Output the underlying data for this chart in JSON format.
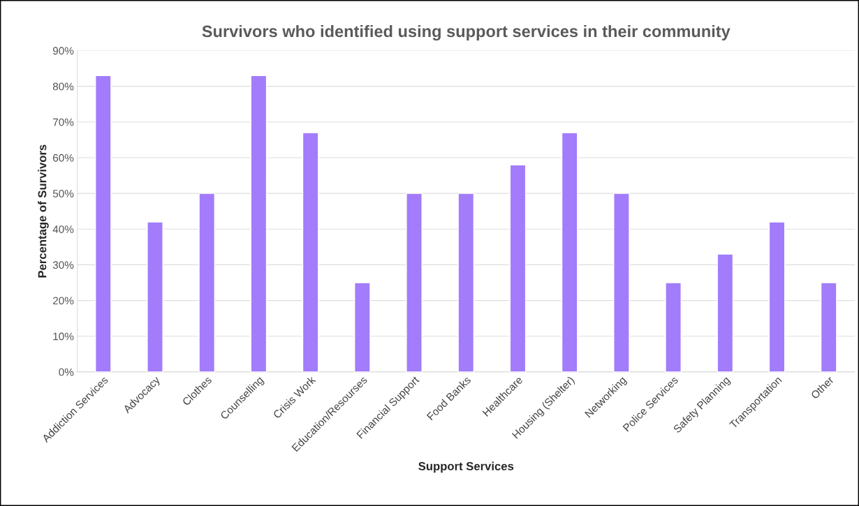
{
  "chart_data": {
    "type": "bar",
    "title": "Survivors who identified using support services in their community",
    "xlabel": "Support Services",
    "ylabel": "Percentage of Survivors",
    "categories": [
      "Addiction Services",
      "Advocacy",
      "Clothes",
      "Counselling",
      "Crisis Work",
      "Education/Resourses",
      "Financial Support",
      "Food Banks",
      "Healthcare",
      "Housing (Shelter)",
      "Networking",
      "Police Services",
      "Safety Planning",
      "Transportation",
      "Other"
    ],
    "values": [
      83,
      42,
      50,
      83,
      67,
      25,
      50,
      50,
      58,
      67,
      50,
      25,
      33,
      42,
      25
    ],
    "color": "#a27cfa",
    "ylim": [
      0,
      90
    ],
    "yticks": [
      {
        "value": 0,
        "label": "0%"
      },
      {
        "value": 10,
        "label": "10%"
      },
      {
        "value": 20,
        "label": "20%"
      },
      {
        "value": 30,
        "label": "30%"
      },
      {
        "value": 40,
        "label": "40%"
      },
      {
        "value": 50,
        "label": "50%"
      },
      {
        "value": 60,
        "label": "60%"
      },
      {
        "value": 70,
        "label": "70%"
      },
      {
        "value": 80,
        "label": "80%"
      },
      {
        "value": 90,
        "label": "90%"
      }
    ],
    "grid": "y"
  }
}
